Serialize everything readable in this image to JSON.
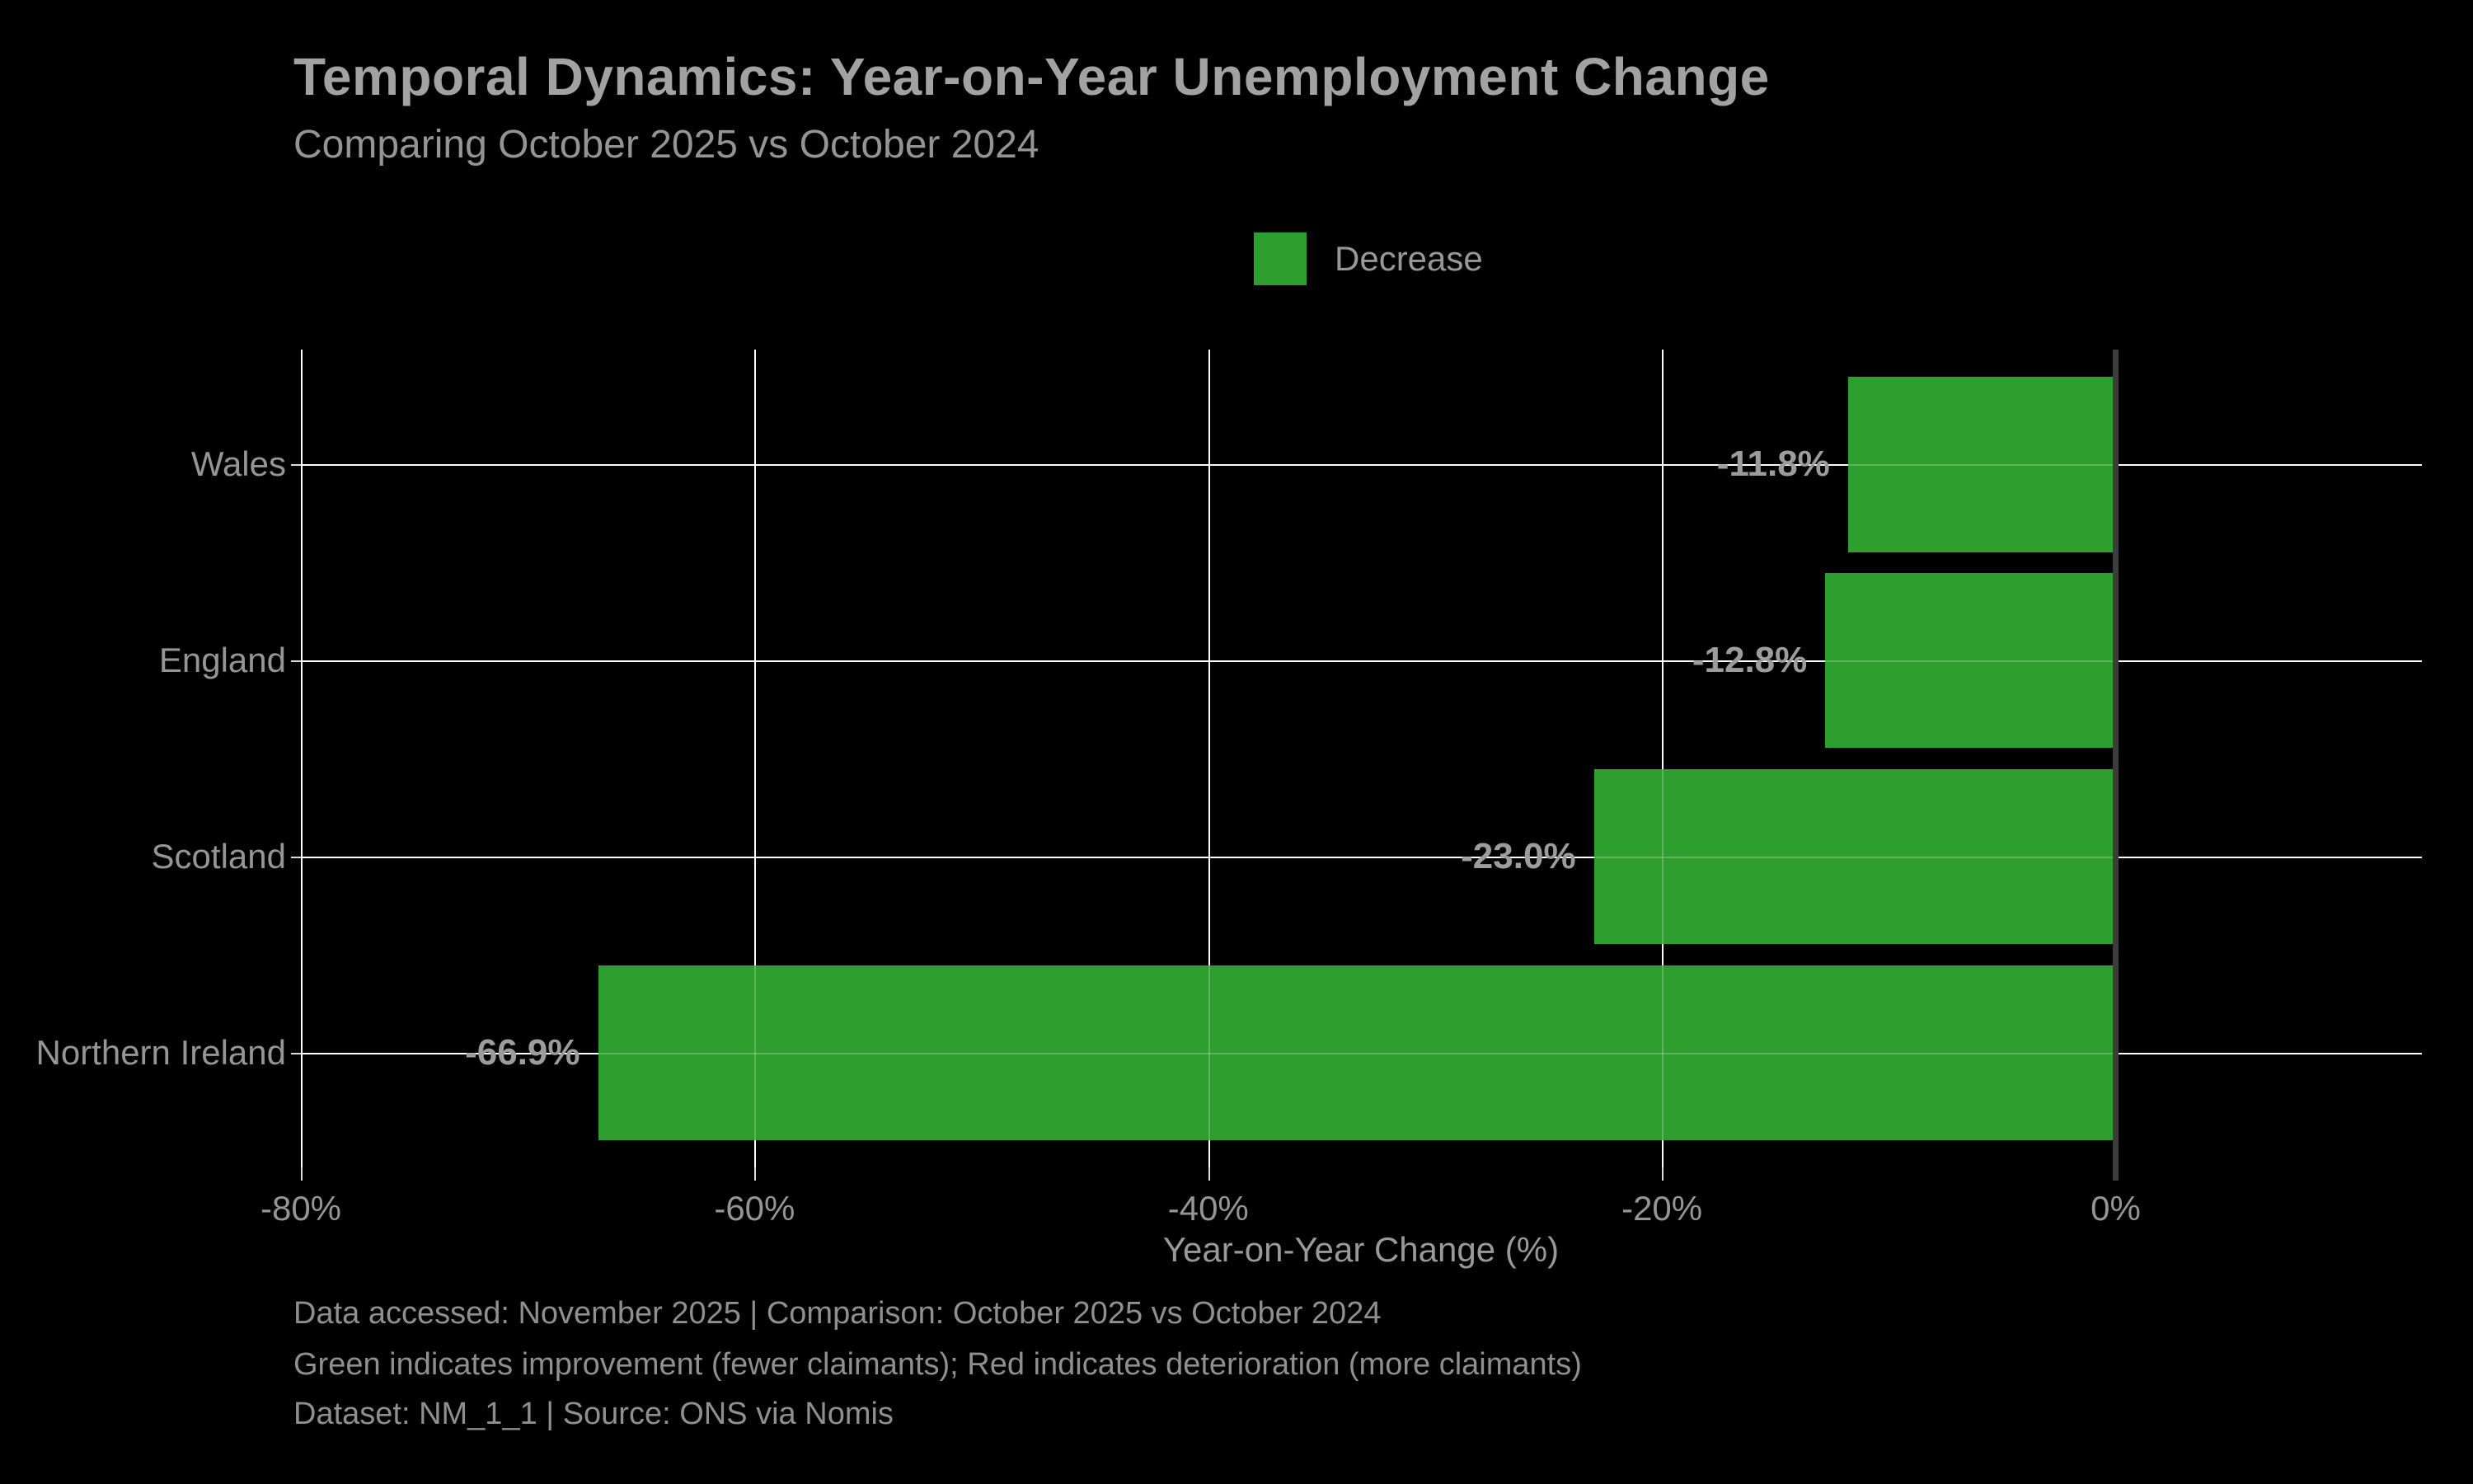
{
  "title": "Temporal Dynamics: Year-on-Year Unemployment Change",
  "subtitle": "Comparing October 2025 vs October 2024",
  "legend": {
    "label": "Decrease",
    "color": "#2e9e2e"
  },
  "chart_data": {
    "type": "bar",
    "orientation": "horizontal",
    "categories": [
      "Wales",
      "England",
      "Scotland",
      "Northern Ireland"
    ],
    "values": [
      -11.8,
      -12.8,
      -23.0,
      -66.9
    ],
    "value_labels": [
      "-11.8%",
      "-12.8%",
      "-23.0%",
      "-66.9%"
    ],
    "series_name": "Decrease",
    "xlabel": "Year-on-Year Change (%)",
    "xticks": [
      -80,
      -60,
      -40,
      -20,
      0
    ],
    "xtick_labels": [
      "-80%",
      "-60%",
      "-40%",
      "-20%",
      "0%"
    ],
    "xlim": [
      -80,
      13.5
    ],
    "grid": true,
    "legend_position": "top-center",
    "colors": {
      "background": "#000000",
      "bar": "#2e9e2e",
      "gridline": "#fbfbfb",
      "zero_line": "#3c3c3c",
      "text": "#959595"
    }
  },
  "footer": {
    "lines": [
      "Data accessed: November 2025 | Comparison: October 2025 vs October 2024",
      "Green indicates improvement (fewer claimants); Red indicates deterioration (more claimants)",
      "Dataset: NM_1_1 | Source: ONS via Nomis"
    ]
  }
}
